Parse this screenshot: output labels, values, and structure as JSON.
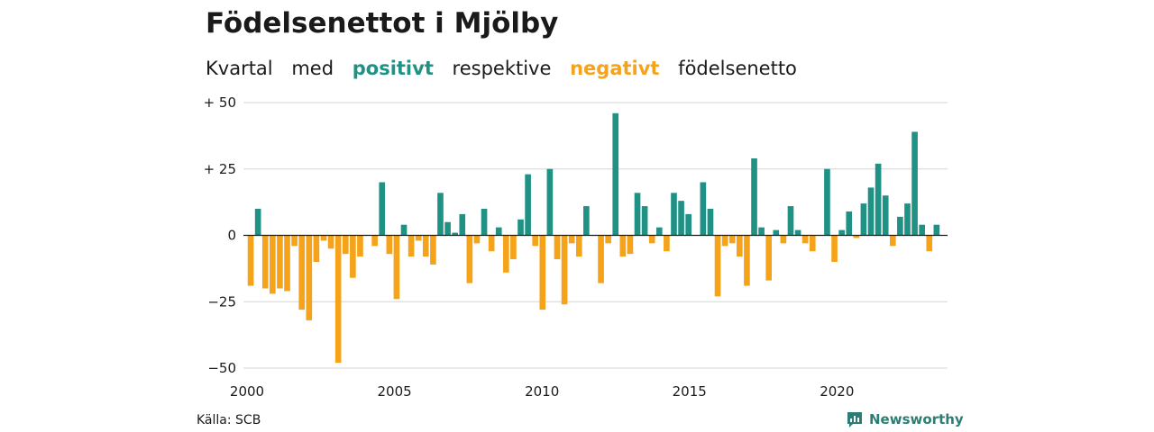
{
  "header": {
    "title": "Födelsenettot i Mjölby",
    "subtitle_words": [
      "Kvartal",
      "med",
      "positivt",
      "respektive",
      "negativt",
      "födelsenetto"
    ]
  },
  "footer": {
    "source": "Källa: SCB",
    "brand": "Newsworthy",
    "brand_icon": "newsworthy-logo-icon"
  },
  "colors": {
    "positive": "#1f9185",
    "negative": "#f5a31a",
    "grid": "#dddddd",
    "text": "#1a1a1a"
  },
  "chart_data": {
    "type": "bar",
    "title": "Födelsenettot i Mjölby",
    "subtitle": "Kvartal med positivt respektive negativt födelsenetto",
    "xlabel": "",
    "ylabel": "",
    "ylim": [
      -50,
      50
    ],
    "xlim": [
      2000,
      2023.75
    ],
    "y_ticks": [
      50,
      25,
      0,
      -25,
      -50
    ],
    "y_tick_labels": [
      "+ 50",
      "+ 25",
      "0",
      "−25",
      "−50"
    ],
    "x_ticks": [
      2000,
      2005,
      2010,
      2015,
      2020
    ],
    "x_tick_labels": [
      "2000",
      "2005",
      "2010",
      "2015",
      "2020"
    ],
    "grid": true,
    "x": [
      "2000Q1",
      "2000Q2",
      "2000Q3",
      "2000Q4",
      "2001Q1",
      "2001Q2",
      "2001Q3",
      "2001Q4",
      "2002Q1",
      "2002Q2",
      "2002Q3",
      "2002Q4",
      "2003Q1",
      "2003Q2",
      "2003Q3",
      "2003Q4",
      "2004Q1",
      "2004Q2",
      "2004Q3",
      "2004Q4",
      "2005Q1",
      "2005Q2",
      "2005Q3",
      "2005Q4",
      "2006Q1",
      "2006Q2",
      "2006Q3",
      "2006Q4",
      "2007Q1",
      "2007Q2",
      "2007Q3",
      "2007Q4",
      "2008Q1",
      "2008Q2",
      "2008Q3",
      "2008Q4",
      "2009Q1",
      "2009Q2",
      "2009Q3",
      "2009Q4",
      "2010Q1",
      "2010Q2",
      "2010Q3",
      "2010Q4",
      "2011Q1",
      "2011Q2",
      "2011Q3",
      "2011Q4",
      "2012Q1",
      "2012Q2",
      "2012Q3",
      "2012Q4",
      "2013Q1",
      "2013Q2",
      "2013Q3",
      "2013Q4",
      "2014Q1",
      "2014Q2",
      "2014Q3",
      "2014Q4",
      "2015Q1",
      "2015Q2",
      "2015Q3",
      "2015Q4",
      "2016Q1",
      "2016Q2",
      "2016Q3",
      "2016Q4",
      "2017Q1",
      "2017Q2",
      "2017Q3",
      "2017Q4",
      "2018Q1",
      "2018Q2",
      "2018Q3",
      "2018Q4",
      "2019Q1",
      "2019Q2",
      "2019Q3",
      "2019Q4",
      "2020Q1",
      "2020Q2",
      "2020Q3",
      "2020Q4",
      "2021Q1",
      "2021Q2",
      "2021Q3",
      "2021Q4",
      "2022Q1",
      "2022Q2",
      "2022Q3",
      "2022Q4",
      "2023Q1",
      "2023Q2",
      "2023Q3",
      "2023Q4"
    ],
    "values": [
      -19,
      10,
      -20,
      -22,
      -20,
      -21,
      -4,
      -28,
      -32,
      -10,
      -2,
      -5,
      -48,
      -7,
      -16,
      -8,
      0,
      -4,
      20,
      -7,
      -24,
      4,
      -8,
      -2,
      -8,
      -11,
      16,
      5,
      1,
      8,
      -18,
      -3,
      10,
      -6,
      3,
      -14,
      -9,
      6,
      23,
      -4,
      -28,
      25,
      -9,
      -26,
      -3,
      -8,
      11,
      0,
      -18,
      -3,
      46,
      -8,
      -7,
      16,
      11,
      -3,
      3,
      -6,
      16,
      13,
      8,
      0,
      20,
      10,
      -23,
      -4,
      -3,
      -8,
      -19,
      29,
      3,
      -17,
      2,
      -3,
      11,
      2,
      -3,
      -6,
      0,
      25,
      -10,
      2,
      9,
      -1,
      12,
      18,
      27,
      15,
      -4,
      7,
      12,
      39,
      4,
      -6,
      4,
      0
    ]
  }
}
